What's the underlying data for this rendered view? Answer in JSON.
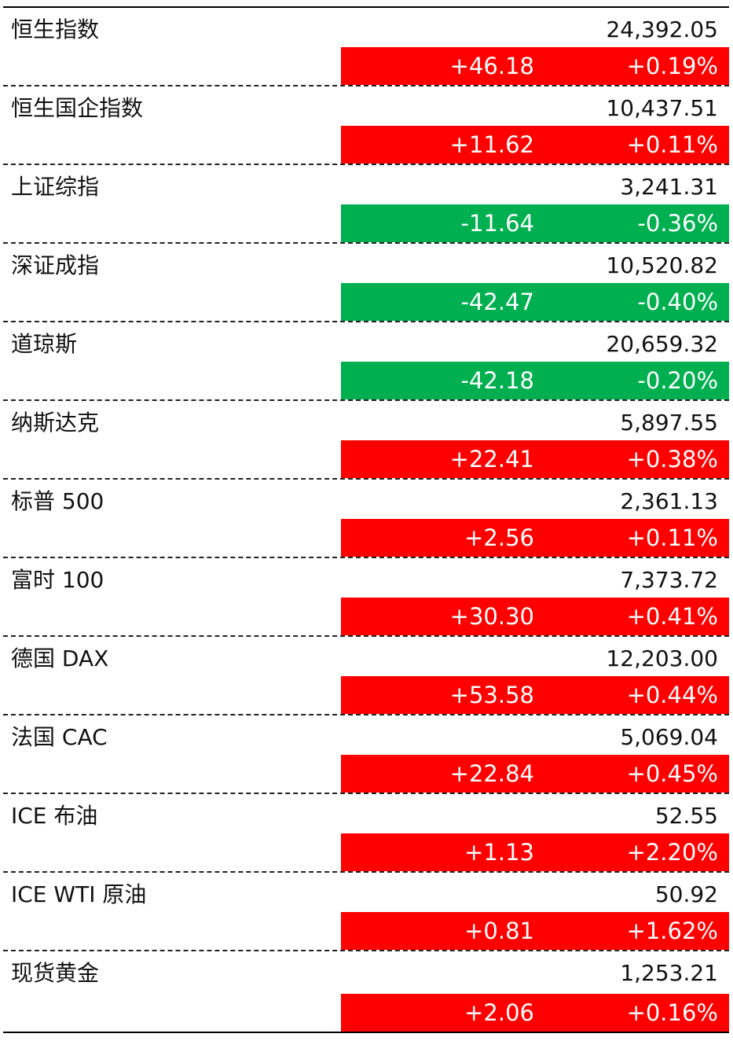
{
  "rows": [
    {
      "name": "恒生指数",
      "value": "24,392.05",
      "change": "+46.18",
      "percent": "+0.19%",
      "direction": "up"
    },
    {
      "name": "恒生国企指数",
      "value": "10,437.51",
      "change": "+11.62",
      "percent": "+0.11%",
      "direction": "up"
    },
    {
      "name": "上证综指",
      "value": "3,241.31",
      "change": "-11.64",
      "percent": "-0.36%",
      "direction": "down"
    },
    {
      "name": "深证成指",
      "value": "10,520.82",
      "change": "-42.47",
      "percent": "-0.40%",
      "direction": "down"
    },
    {
      "name": "道琼斯",
      "value": "20,659.32",
      "change": "-42.18",
      "percent": "-0.20%",
      "direction": "down"
    },
    {
      "name": "纳斯达克",
      "value": "5,897.55",
      "change": "+22.41",
      "percent": "+0.38%",
      "direction": "up"
    },
    {
      "name": "标普 500",
      "value": "2,361.13",
      "change": "+2.56",
      "percent": "+0.11%",
      "direction": "up"
    },
    {
      "name": "富时 100",
      "value": "7,373.72",
      "change": "+30.30",
      "percent": "+0.41%",
      "direction": "up"
    },
    {
      "name": "德国 DAX",
      "value": "12,203.00",
      "change": "+53.58",
      "percent": "+0.44%",
      "direction": "up"
    },
    {
      "name": "法国 CAC",
      "value": "5,069.04",
      "change": "+22.84",
      "percent": "+0.45%",
      "direction": "up"
    },
    {
      "name": "ICE 布油",
      "value": "52.55",
      "change": "+1.13",
      "percent": "+2.20%",
      "direction": "up"
    },
    {
      "name": "ICE WTI 原油",
      "value": "50.92",
      "change": "+0.81",
      "percent": "+1.62%",
      "direction": "up"
    },
    {
      "name": "现货黄金",
      "value": "1,253.21",
      "change": "+2.06",
      "percent": "+0.16%",
      "direction": "up"
    }
  ],
  "colors": {
    "up": "#ff0000",
    "down": "#00b050",
    "text": "#111111",
    "bar_text": "#ffffff"
  }
}
